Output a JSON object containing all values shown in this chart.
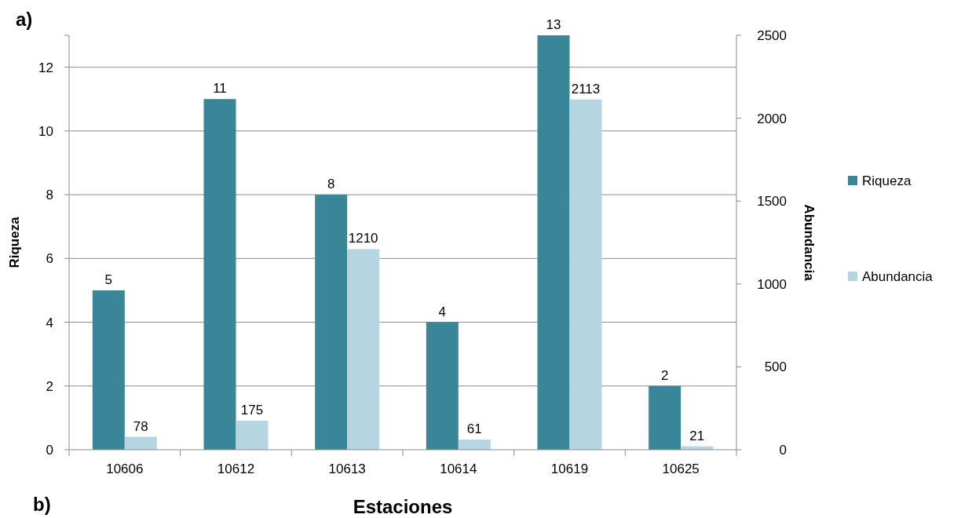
{
  "chart_data": {
    "type": "bar",
    "xlabel": "Estaciones",
    "ylabel": "Riqueza",
    "y2label": "Abundancia",
    "categories": [
      "10606",
      "10612",
      "10613",
      "10614",
      "10619",
      "10625"
    ],
    "series": [
      {
        "name": "Riqueza",
        "color": "#3a8699",
        "values": [
          5,
          11,
          8,
          4,
          13,
          2
        ]
      },
      {
        "name": "Abundancia",
        "color": "#b5d6e0",
        "values": [
          78,
          175,
          1210,
          61,
          2113,
          21
        ],
        "axis": "y2"
      }
    ],
    "ylim": [
      0,
      13
    ],
    "yticks": [
      0,
      2,
      4,
      6,
      8,
      10,
      12,
      {
        "value": 13,
        "label": null
      }
    ],
    "y2lim": [
      0,
      2500
    ],
    "y2ticks": [
      0,
      500,
      1000,
      1500,
      2000,
      2500
    ],
    "grid": "y",
    "legend": "right",
    "data_labels": true,
    "annotations": [
      "a)",
      "b)"
    ]
  }
}
